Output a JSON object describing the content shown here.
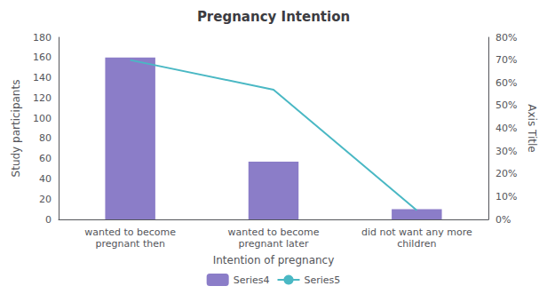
{
  "chart_data": {
    "type": "bar",
    "title": "Pregnancy Intention",
    "categories": [
      "wanted to become\npregnant then",
      "wanted to become\npregnant later",
      "did not want any more\nchildren"
    ],
    "xlabel": "Intention of pregnancy",
    "ylabel": "Study participants",
    "y2label": "Axis Title",
    "series": [
      {
        "name": "Series4",
        "type": "bar",
        "color": "#8B7DC8",
        "values": [
          160,
          57,
          10
        ]
      },
      {
        "name": "Series5",
        "type": "line",
        "color": "#4AB8C4",
        "marker": "none",
        "axis": "y2",
        "values": [
          70,
          57,
          4
        ]
      }
    ],
    "ylim": [
      0,
      180
    ],
    "yticks": [
      0,
      20,
      40,
      60,
      80,
      100,
      120,
      140,
      160,
      180
    ],
    "y2lim": [
      0,
      80
    ],
    "y2ticks": [
      {
        "value": 0,
        "label": "0%"
      },
      {
        "value": 10,
        "label": "10%"
      },
      {
        "value": 20,
        "label": "20%"
      },
      {
        "value": 30,
        "label": "30%"
      },
      {
        "value": 40,
        "label": "40%"
      },
      {
        "value": 50,
        "label": "50%"
      },
      {
        "value": 60,
        "label": "60%"
      },
      {
        "value": 70,
        "label": "70%"
      },
      {
        "value": 80,
        "label": "80%"
      }
    ],
    "grid": false,
    "legend": "bottom"
  }
}
